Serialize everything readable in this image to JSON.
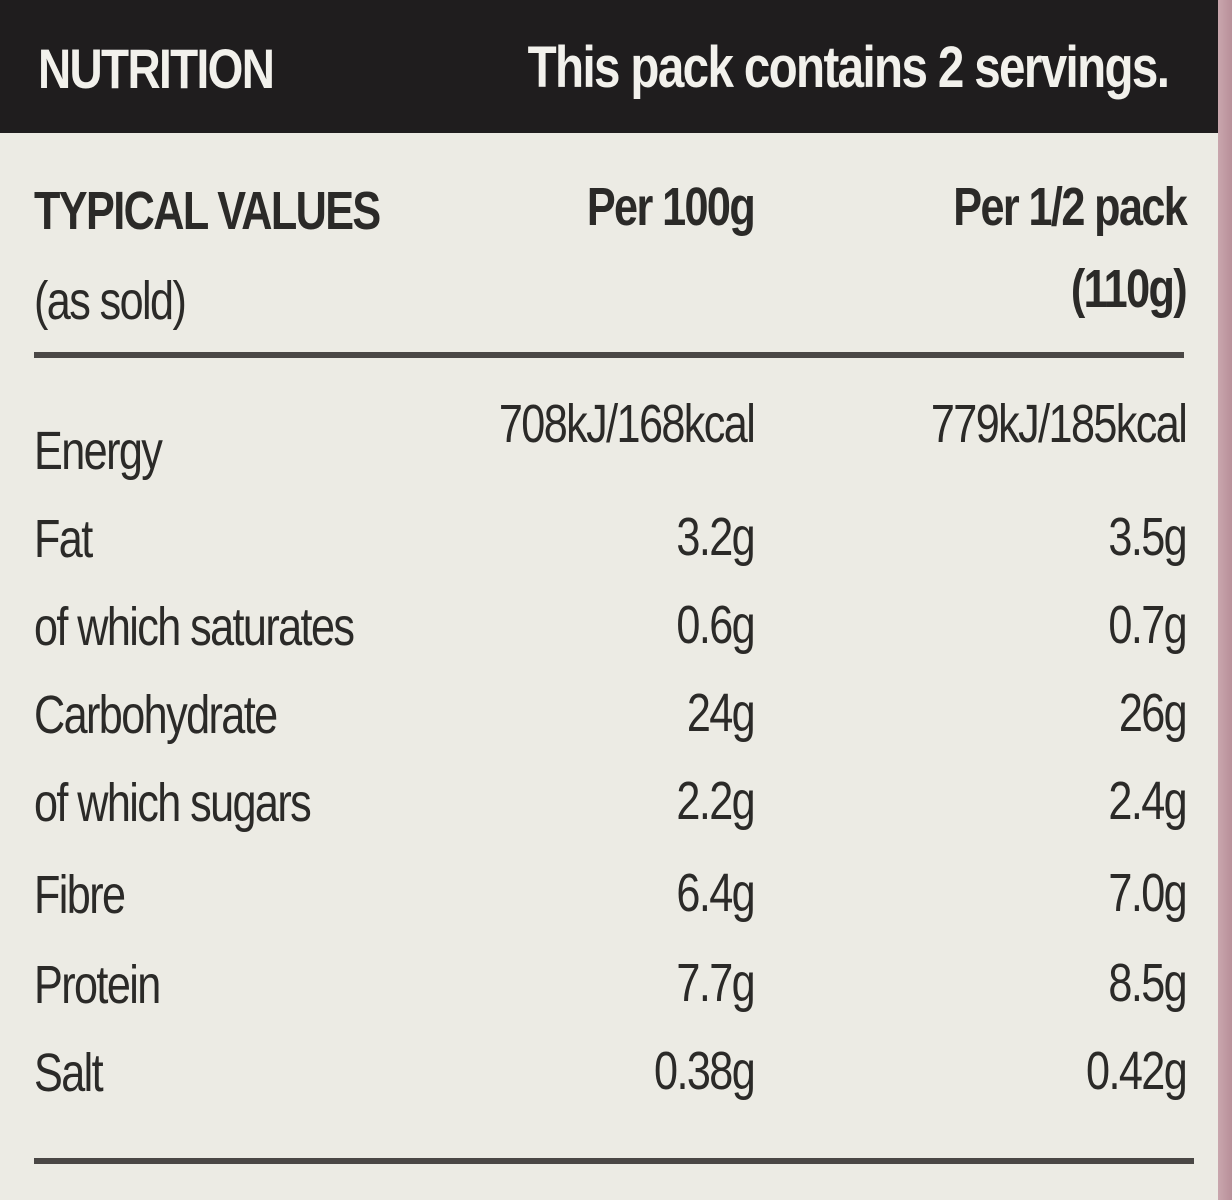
{
  "header": {
    "title": "NUTRITION",
    "servings": "This pack contains 2 servings."
  },
  "columns": {
    "label_line1": "TYPICAL VALUES",
    "label_line2": "(as sold)",
    "per100": "Per 100g",
    "perhalf_line1": "Per 1/2 pack",
    "perhalf_line2": "(110g)"
  },
  "rows": [
    {
      "name": "Energy",
      "per100": "708kJ/168kcal",
      "perhalf": "779kJ/185kcal"
    },
    {
      "name": "Fat",
      "per100": "3.2g",
      "perhalf": "3.5g"
    },
    {
      "name": "of which saturates",
      "per100": "0.6g",
      "perhalf": "0.7g"
    },
    {
      "name": "Carbohydrate",
      "per100": "24g",
      "perhalf": "26g"
    },
    {
      "name": "of which sugars",
      "per100": "2.2g",
      "perhalf": "2.4g"
    },
    {
      "name": "Fibre",
      "per100": "6.4g",
      "perhalf": "7.0g"
    },
    {
      "name": "Protein",
      "per100": "7.7g",
      "perhalf": "8.5g"
    },
    {
      "name": "Salt",
      "per100": "0.38g",
      "perhalf": "0.42g"
    }
  ]
}
